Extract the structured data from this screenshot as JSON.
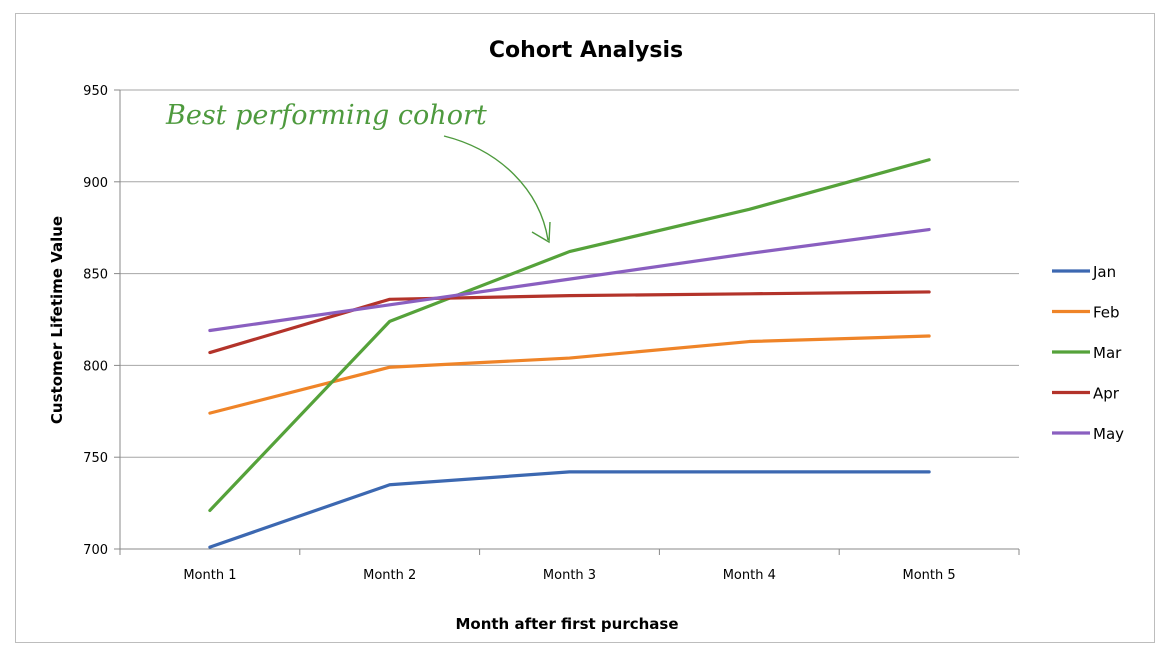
{
  "chart_data": {
    "type": "line",
    "title": "Cohort Analysis",
    "xlabel": "Month after first purchase",
    "ylabel": "Customer Lifetime Value",
    "categories": [
      "Month 1",
      "Month 2",
      "Month 3",
      "Month 4",
      "Month 5"
    ],
    "ylim": [
      700,
      950
    ],
    "yticks": [
      700,
      750,
      800,
      850,
      900,
      950
    ],
    "grid": true,
    "legend_position": "right",
    "series": [
      {
        "name": "Jan",
        "color": "#3c68b1",
        "values": [
          701,
          735,
          742,
          742,
          742
        ]
      },
      {
        "name": "Feb",
        "color": "#ef8428",
        "values": [
          774,
          799,
          804,
          813,
          816
        ]
      },
      {
        "name": "Mar",
        "color": "#55a23a",
        "values": [
          721,
          824,
          862,
          885,
          912
        ]
      },
      {
        "name": "Apr",
        "color": "#b3332a",
        "values": [
          807,
          836,
          838,
          839,
          840
        ]
      },
      {
        "name": "May",
        "color": "#8a5fc0",
        "values": [
          819,
          833,
          847,
          861,
          874
        ]
      }
    ],
    "annotation": {
      "text": "Best performing cohort",
      "color": "#4e9a3e"
    }
  }
}
